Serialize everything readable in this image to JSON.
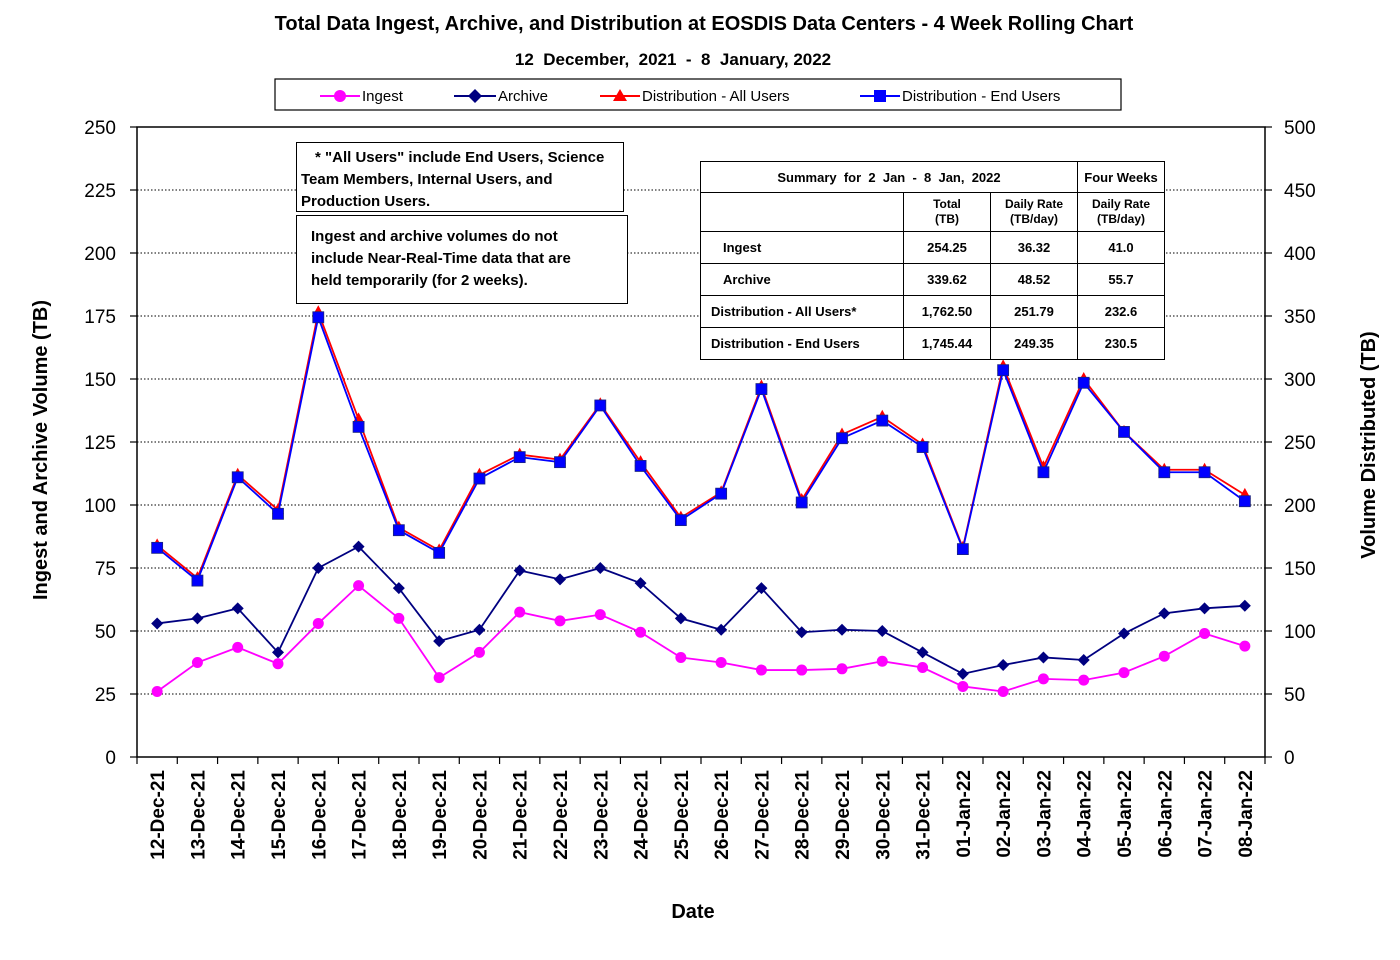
{
  "chart_data": {
    "type": "line",
    "title": "Total Data Ingest, Archive, and  Distribution at EOSDIS Data Centers - 4 Week Rolling Chart",
    "subtitle": "12  December,  2021  -  8  January, 2022",
    "xlabel": "Date",
    "ylabel_left": "Ingest and Archive Volume (TB)",
    "ylabel_right": "Volume Distributed (TB)",
    "ylim_left": [
      0,
      250
    ],
    "ylim_right": [
      0,
      500
    ],
    "yticks_left": [
      "0",
      "25",
      "50",
      "75",
      "100",
      "125",
      "150",
      "175",
      "200",
      "225",
      "250"
    ],
    "yticks_right": [
      "0",
      "50",
      "100",
      "150",
      "200",
      "250",
      "300",
      "350",
      "400",
      "450",
      "500"
    ],
    "grid": "horizontal dotted",
    "legend_position": "top",
    "categories": [
      "12-Dec-21",
      "13-Dec-21",
      "14-Dec-21",
      "15-Dec-21",
      "16-Dec-21",
      "17-Dec-21",
      "18-Dec-21",
      "19-Dec-21",
      "20-Dec-21",
      "21-Dec-21",
      "22-Dec-21",
      "23-Dec-21",
      "24-Dec-21",
      "25-Dec-21",
      "26-Dec-21",
      "27-Dec-21",
      "28-Dec-21",
      "29-Dec-21",
      "30-Dec-21",
      "31-Dec-21",
      "01-Jan-22",
      "02-Jan-22",
      "03-Jan-22",
      "04-Jan-22",
      "05-Jan-22",
      "06-Jan-22",
      "07-Jan-22",
      "08-Jan-22"
    ],
    "series": [
      {
        "name": "Ingest",
        "axis": "left",
        "color": "#ff00ff",
        "marker": "circle",
        "values": [
          26,
          37.5,
          43.5,
          37,
          53,
          68,
          55,
          31.5,
          41.5,
          57.5,
          54,
          56.5,
          49.5,
          39.5,
          37.5,
          34.5,
          34.5,
          35,
          38,
          35.5,
          28,
          26,
          31,
          30.5,
          33.5,
          40,
          49,
          44
        ]
      },
      {
        "name": "Archive",
        "axis": "left",
        "color": "#000080",
        "marker": "diamond",
        "values": [
          53,
          55,
          59,
          41.5,
          75,
          83.5,
          67,
          46,
          50.5,
          74,
          70.5,
          75,
          69,
          55,
          50.5,
          67,
          49.5,
          50.5,
          50,
          41.5,
          33,
          36.5,
          39.5,
          38.5,
          49,
          57,
          59,
          60
        ]
      },
      {
        "name": "Distribution - All Users",
        "axis": "right",
        "color": "#ff0000",
        "marker": "triangle",
        "values": [
          168,
          142,
          224,
          196,
          353,
          268,
          182,
          164,
          224,
          240,
          236,
          280,
          234,
          190,
          210,
          294,
          204,
          256,
          270,
          248,
          166,
          310,
          230,
          300,
          258,
          228,
          228,
          208
        ]
      },
      {
        "name": "Distribution - End Users",
        "axis": "right",
        "color": "#0000ff",
        "marker": "square",
        "values": [
          166,
          140,
          222,
          193,
          349,
          262,
          180,
          162,
          221,
          238,
          234,
          279,
          231,
          188,
          209,
          292,
          202,
          253,
          267,
          246,
          165,
          307,
          226,
          297,
          258,
          226,
          226,
          203
        ]
      }
    ]
  },
  "legend": {
    "items": [
      "Ingest",
      "Archive",
      "Distribution - All Users",
      "Distribution - End Users"
    ]
  },
  "notes": {
    "all_users": [
      "* \"All Users\" include End Users, Science",
      "Team Members,  Internal Users, and",
      "Production Users."
    ],
    "nrt": [
      "Ingest and archive volumes do not",
      "include Near-Real-Time data that are",
      "held temporarily (for 2 weeks)."
    ]
  },
  "summary": {
    "title": "Summary  for  2  Jan  -  8  Jan,  2022",
    "four_weeks": "Four Weeks",
    "col_total": [
      "Total",
      "(TB)"
    ],
    "col_daily": [
      "Daily Rate",
      "(TB/day)"
    ],
    "col_daily4": [
      "Daily Rate",
      "(TB/day)"
    ],
    "rows": [
      {
        "label": "Ingest",
        "total": "254.25",
        "daily": "36.32",
        "daily4": "41.0"
      },
      {
        "label": "Archive",
        "total": "339.62",
        "daily": "48.52",
        "daily4": "55.7"
      },
      {
        "label": "Distribution - All Users*",
        "total": "1,762.50",
        "daily": "251.79",
        "daily4": "232.6"
      },
      {
        "label": "Distribution - End Users",
        "total": "1,745.44",
        "daily": "249.35",
        "daily4": "230.5"
      }
    ]
  }
}
